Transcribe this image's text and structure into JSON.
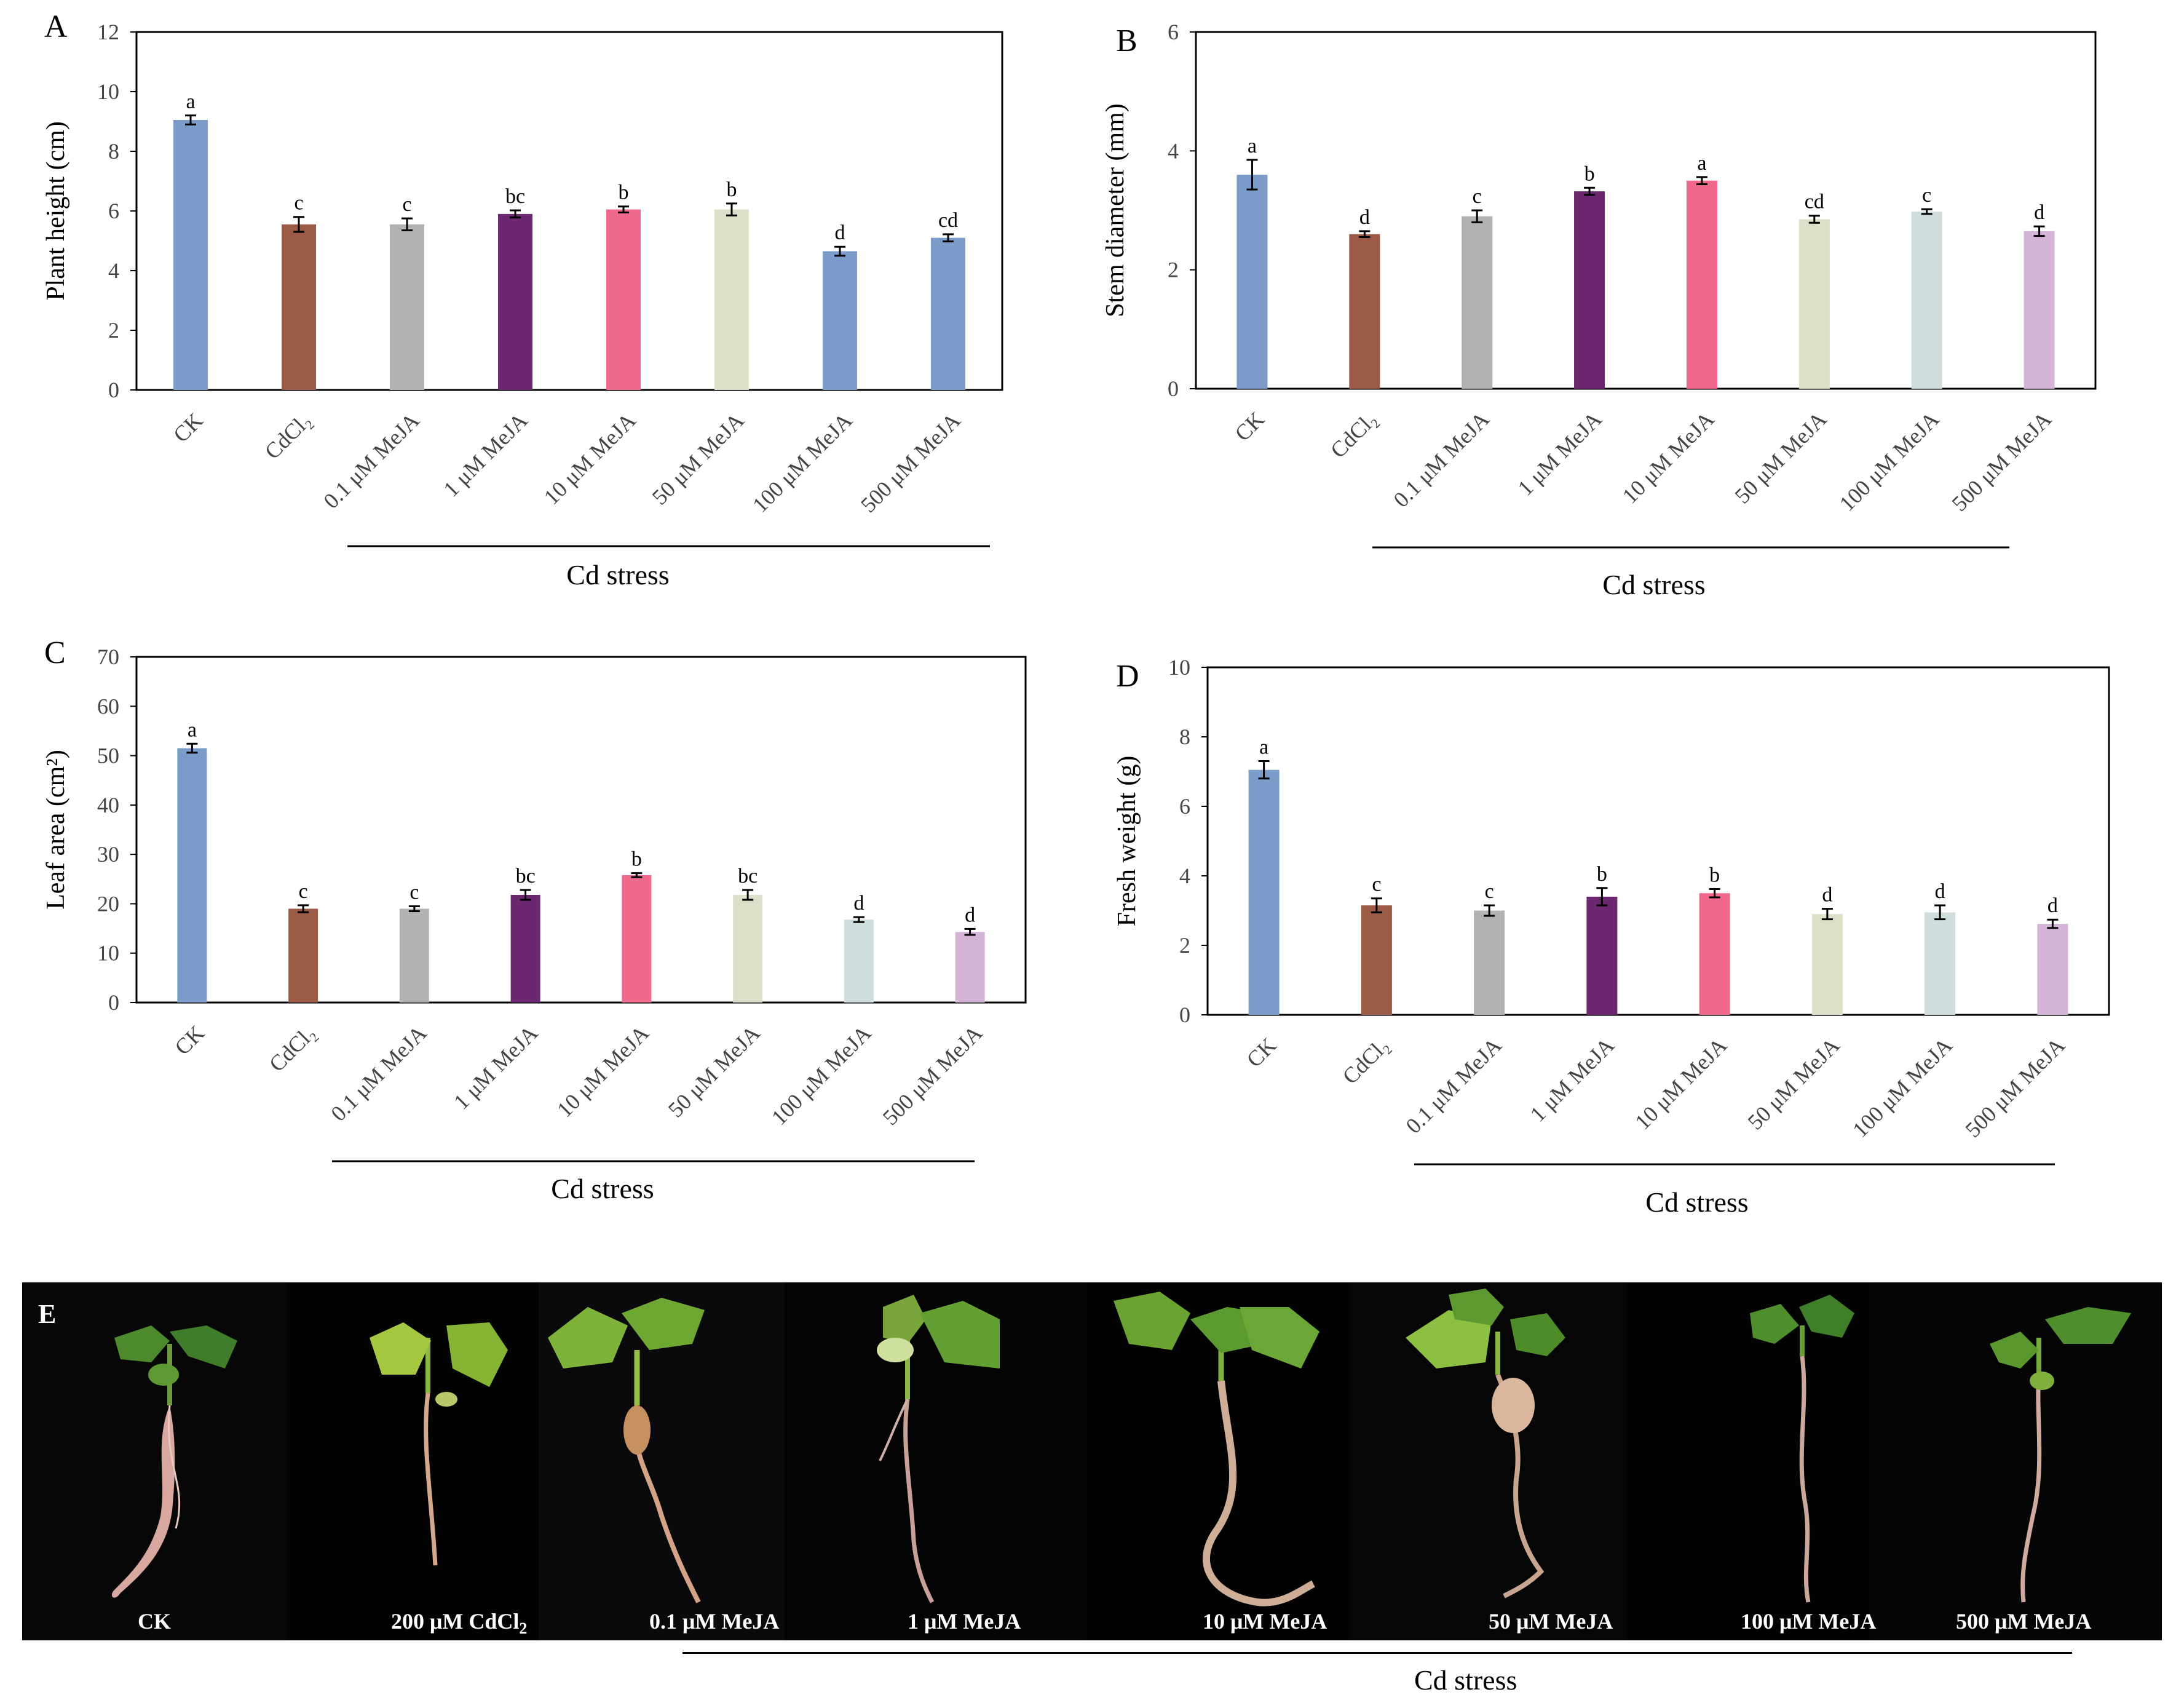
{
  "colors": {
    "ck": "#7b9cc8",
    "cdcl2": "#9a5a45",
    "meja_0_1": "#b2b2b2",
    "meja_1": "#6b2870",
    "meja_10": "#f0698d",
    "meja_50": "#dedfc9",
    "meja_100": "#cfdedc",
    "meja_500": "#d5b5d7",
    "meja_100_A": "#7b9cc8",
    "meja_500_A": "#7b9cc8"
  },
  "group_label": "Cd stress",
  "chart_data": [
    {
      "panel": "A",
      "type": "bar",
      "ylabel": "Plant height (cm)",
      "ylim": [
        0,
        12
      ],
      "yticks": [
        0,
        2,
        4,
        6,
        8,
        10,
        12
      ],
      "categories": [
        "CK",
        "CdCl₂",
        "0.1 μM MeJA",
        "1 μM MeJA",
        "10 μM MeJA",
        "50 μM MeJA",
        "100 μM MeJA",
        "500 μM MeJA"
      ],
      "values": [
        9.05,
        5.55,
        5.55,
        5.9,
        6.05,
        6.05,
        4.65,
        5.1
      ],
      "errors": [
        0.15,
        0.25,
        0.2,
        0.12,
        0.1,
        0.2,
        0.15,
        0.12
      ],
      "letters": [
        "a",
        "c",
        "c",
        "bc",
        "b",
        "b",
        "d",
        "cd"
      ],
      "group": "Cd stress"
    },
    {
      "panel": "B",
      "type": "bar",
      "ylabel": "Stem diameter (mm)",
      "ylim": [
        0,
        6
      ],
      "yticks": [
        0,
        2,
        4,
        6
      ],
      "categories": [
        "CK",
        "CdCl₂",
        "0.1 μM MeJA",
        "1 μM MeJA",
        "10 μM MeJA",
        "50 μM MeJA",
        "100 μM MeJA",
        "500 μM MeJA"
      ],
      "values": [
        3.6,
        2.6,
        2.9,
        3.32,
        3.5,
        2.85,
        2.98,
        2.65
      ],
      "errors": [
        0.25,
        0.05,
        0.1,
        0.06,
        0.06,
        0.06,
        0.04,
        0.08
      ],
      "letters": [
        "a",
        "d",
        "c",
        "b",
        "a",
        "cd",
        "c",
        "d"
      ],
      "group": "Cd stress"
    },
    {
      "panel": "C",
      "type": "bar",
      "ylabel": "Leaf area (cm²)",
      "ylim": [
        0,
        70
      ],
      "yticks": [
        0,
        10,
        20,
        30,
        40,
        50,
        60,
        70
      ],
      "categories": [
        "CK",
        "CdCl₂",
        "0.1 μM MeJA",
        "1 μM MeJA",
        "10 μM MeJA",
        "50 μM MeJA",
        "100 μM MeJA",
        "500 μM MeJA"
      ],
      "values": [
        51.5,
        19,
        19,
        21.8,
        25.8,
        21.8,
        16.8,
        14.3
      ],
      "errors": [
        0.9,
        0.7,
        0.5,
        1.0,
        0.4,
        1.0,
        0.5,
        0.6
      ],
      "letters": [
        "a",
        "c",
        "c",
        "bc",
        "b",
        "bc",
        "d",
        "d"
      ],
      "group": "Cd stress"
    },
    {
      "panel": "D",
      "type": "bar",
      "ylabel": "Fresh weight (g)",
      "ylim": [
        0,
        10
      ],
      "yticks": [
        0,
        2,
        4,
        6,
        8,
        10
      ],
      "categories": [
        "CK",
        "CdCl₂",
        "0.1 μM MeJA",
        "1 μM MeJA",
        "10 μM MeJA",
        "50 μM MeJA",
        "100 μM MeJA",
        "500 μM MeJA"
      ],
      "values": [
        7.05,
        3.15,
        3.0,
        3.4,
        3.5,
        2.9,
        2.95,
        2.62
      ],
      "errors": [
        0.25,
        0.2,
        0.15,
        0.25,
        0.12,
        0.15,
        0.2,
        0.12
      ],
      "letters": [
        "a",
        "c",
        "c",
        "b",
        "b",
        "d",
        "d",
        "d"
      ],
      "group": "Cd stress"
    }
  ],
  "photo_panel": {
    "label": "E",
    "captions": [
      "CK",
      "200 μM CdCl",
      "0.1 μM MeJA",
      "1 μM MeJA",
      "10 μM MeJA",
      "50 μM MeJA",
      "100 μM MeJA",
      "500 μM MeJA"
    ],
    "caption_subscript": "2",
    "group": "Cd stress"
  }
}
